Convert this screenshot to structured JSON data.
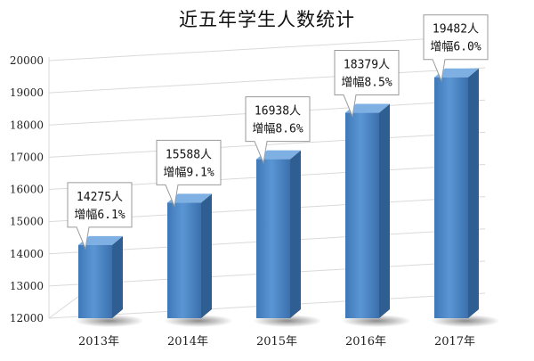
{
  "chart_data": {
    "type": "bar",
    "title": "近五年学生人数统计",
    "categories": [
      "2013年",
      "2014年",
      "2015年",
      "2016年",
      "2017年"
    ],
    "values": [
      14275,
      15588,
      16938,
      18379,
      19482
    ],
    "annotations": [
      {
        "count": "14275人",
        "growth": "增幅6.1%"
      },
      {
        "count": "15588人",
        "growth": "增幅9.1%"
      },
      {
        "count": "16938人",
        "growth": "增幅8.6%"
      },
      {
        "count": "18379人",
        "growth": "增幅8.5%"
      },
      {
        "count": "19482人",
        "growth": "增幅6.0%"
      }
    ],
    "ylim": [
      12000,
      20000
    ],
    "yticks": [
      12000,
      13000,
      14000,
      15000,
      16000,
      17000,
      18000,
      19000,
      20000
    ],
    "grid": true,
    "colors": {
      "bar_front": "#4a86c8",
      "bar_side": "#2f5e92",
      "bar_top": "#7fb0e3",
      "grid": "#d9d9d9"
    }
  }
}
